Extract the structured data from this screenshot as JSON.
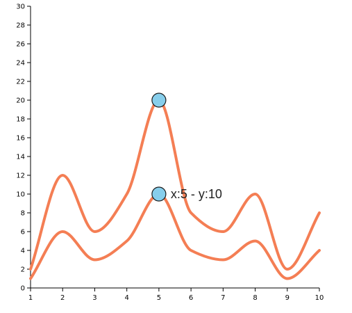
{
  "chart_data": {
    "type": "line",
    "curve": "smooth",
    "x": [
      1,
      2,
      3,
      4,
      5,
      6,
      7,
      8,
      9,
      10
    ],
    "series": [
      {
        "values": [
          2,
          12,
          6,
          10,
          20,
          8,
          6,
          10,
          2,
          8
        ]
      },
      {
        "values": [
          1,
          6,
          3,
          5,
          10,
          4,
          3,
          5,
          1,
          4
        ]
      }
    ],
    "xlim": [
      1,
      10
    ],
    "ylim": [
      0,
      30
    ],
    "x_ticks": [
      1,
      2,
      3,
      4,
      5,
      6,
      7,
      8,
      9,
      10
    ],
    "y_ticks": [
      0,
      2,
      4,
      6,
      8,
      10,
      12,
      14,
      16,
      18,
      20,
      22,
      24,
      26,
      28,
      30
    ],
    "grid": false,
    "markers": [
      {
        "x": 5,
        "y": 20
      },
      {
        "x": 5,
        "y": 10
      }
    ],
    "annotation": "x:5 - y:10",
    "line_color": "#f47e54",
    "marker_color": "#87ceeb"
  }
}
